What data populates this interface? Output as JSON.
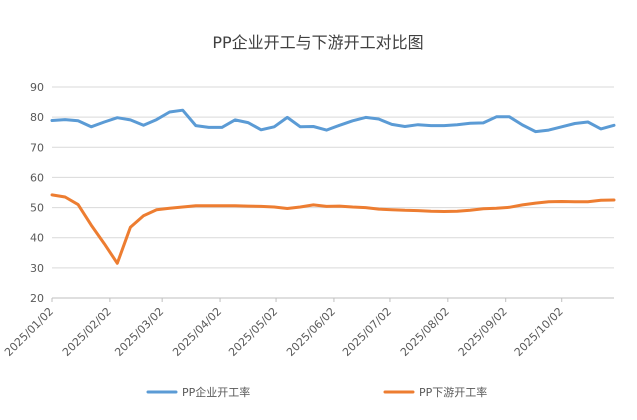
{
  "chart_data": {
    "type": "line",
    "title": "PP企业开工与下游开工对比图",
    "xlabel": "",
    "ylabel": "",
    "ylim": [
      20,
      90
    ],
    "yticks": [
      20,
      30,
      40,
      50,
      60,
      70,
      80,
      90
    ],
    "grid": true,
    "legend_position": "bottom",
    "x_tick_labels": [
      "2025/01/02",
      "2025/02/02",
      "2025/03/02",
      "2025/04/02",
      "2025/05/02",
      "2025/06/02",
      "2025/07/02",
      "2025/08/02",
      "2025/09/02",
      "2025/10/02"
    ],
    "x_start": "2025/01/02",
    "x_end": "2025/10/30",
    "series": [
      {
        "name": "PP企业开工率",
        "color": "#5b9bd5",
        "points": [
          [
            "2025/01/02",
            78.9
          ],
          [
            "2025/01/09",
            79.2
          ],
          [
            "2025/01/16",
            78.8
          ],
          [
            "2025/01/23",
            76.8
          ],
          [
            "2025/01/30",
            78.4
          ],
          [
            "2025/02/06",
            79.8
          ],
          [
            "2025/02/13",
            79.1
          ],
          [
            "2025/02/20",
            77.3
          ],
          [
            "2025/02/27",
            79.2
          ],
          [
            "2025/03/06",
            81.7
          ],
          [
            "2025/03/13",
            82.3
          ],
          [
            "2025/03/20",
            77.2
          ],
          [
            "2025/03/27",
            76.6
          ],
          [
            "2025/04/03",
            76.6
          ],
          [
            "2025/04/10",
            79.1
          ],
          [
            "2025/04/17",
            78.2
          ],
          [
            "2025/04/24",
            75.8
          ],
          [
            "2025/05/01",
            76.8
          ],
          [
            "2025/05/08",
            79.9
          ],
          [
            "2025/05/15",
            76.8
          ],
          [
            "2025/05/22",
            76.9
          ],
          [
            "2025/05/29",
            75.7
          ],
          [
            "2025/06/05",
            77.3
          ],
          [
            "2025/06/12",
            78.8
          ],
          [
            "2025/06/19",
            79.9
          ],
          [
            "2025/06/26",
            79.4
          ],
          [
            "2025/07/03",
            77.6
          ],
          [
            "2025/07/10",
            76.9
          ],
          [
            "2025/07/17",
            77.5
          ],
          [
            "2025/07/24",
            77.2
          ],
          [
            "2025/07/31",
            77.2
          ],
          [
            "2025/08/07",
            77.5
          ],
          [
            "2025/08/14",
            78.0
          ],
          [
            "2025/08/21",
            78.1
          ],
          [
            "2025/08/28",
            80.1
          ],
          [
            "2025/09/04",
            80.1
          ],
          [
            "2025/09/11",
            77.4
          ],
          [
            "2025/09/18",
            75.2
          ],
          [
            "2025/09/25",
            75.7
          ],
          [
            "2025/10/02",
            76.8
          ],
          [
            "2025/10/09",
            77.9
          ],
          [
            "2025/10/16",
            78.4
          ],
          [
            "2025/10/23",
            76.1
          ],
          [
            "2025/10/30",
            77.3
          ]
        ]
      },
      {
        "name": "PP下游开工率",
        "color": "#ed7d31",
        "points": [
          [
            "2025/01/02",
            54.2
          ],
          [
            "2025/01/09",
            53.5
          ],
          [
            "2025/01/16",
            51.0
          ],
          [
            "2025/01/23",
            44.2
          ],
          [
            "2025/01/30",
            38.0
          ],
          [
            "2025/02/06",
            31.5
          ],
          [
            "2025/02/13",
            43.5
          ],
          [
            "2025/02/20",
            47.3
          ],
          [
            "2025/02/27",
            49.3
          ],
          [
            "2025/03/06",
            49.8
          ],
          [
            "2025/03/13",
            50.2
          ],
          [
            "2025/03/20",
            50.6
          ],
          [
            "2025/03/27",
            50.6
          ],
          [
            "2025/04/03",
            50.6
          ],
          [
            "2025/04/10",
            50.6
          ],
          [
            "2025/04/17",
            50.5
          ],
          [
            "2025/04/24",
            50.4
          ],
          [
            "2025/05/01",
            50.2
          ],
          [
            "2025/05/08",
            49.7
          ],
          [
            "2025/05/15",
            50.2
          ],
          [
            "2025/05/22",
            50.9
          ],
          [
            "2025/05/29",
            50.4
          ],
          [
            "2025/06/05",
            50.5
          ],
          [
            "2025/06/12",
            50.2
          ],
          [
            "2025/06/19",
            50.0
          ],
          [
            "2025/06/26",
            49.5
          ],
          [
            "2025/07/03",
            49.3
          ],
          [
            "2025/07/10",
            49.1
          ],
          [
            "2025/07/17",
            49.0
          ],
          [
            "2025/07/24",
            48.8
          ],
          [
            "2025/07/31",
            48.7
          ],
          [
            "2025/08/07",
            48.8
          ],
          [
            "2025/08/14",
            49.1
          ],
          [
            "2025/08/21",
            49.6
          ],
          [
            "2025/08/28",
            49.8
          ],
          [
            "2025/09/04",
            50.1
          ],
          [
            "2025/09/11",
            50.9
          ],
          [
            "2025/09/18",
            51.5
          ],
          [
            "2025/09/25",
            51.9
          ],
          [
            "2025/10/02",
            52.0
          ],
          [
            "2025/10/09",
            51.9
          ],
          [
            "2025/10/16",
            51.9
          ],
          [
            "2025/10/23",
            52.4
          ],
          [
            "2025/10/30",
            52.5
          ]
        ]
      }
    ]
  }
}
